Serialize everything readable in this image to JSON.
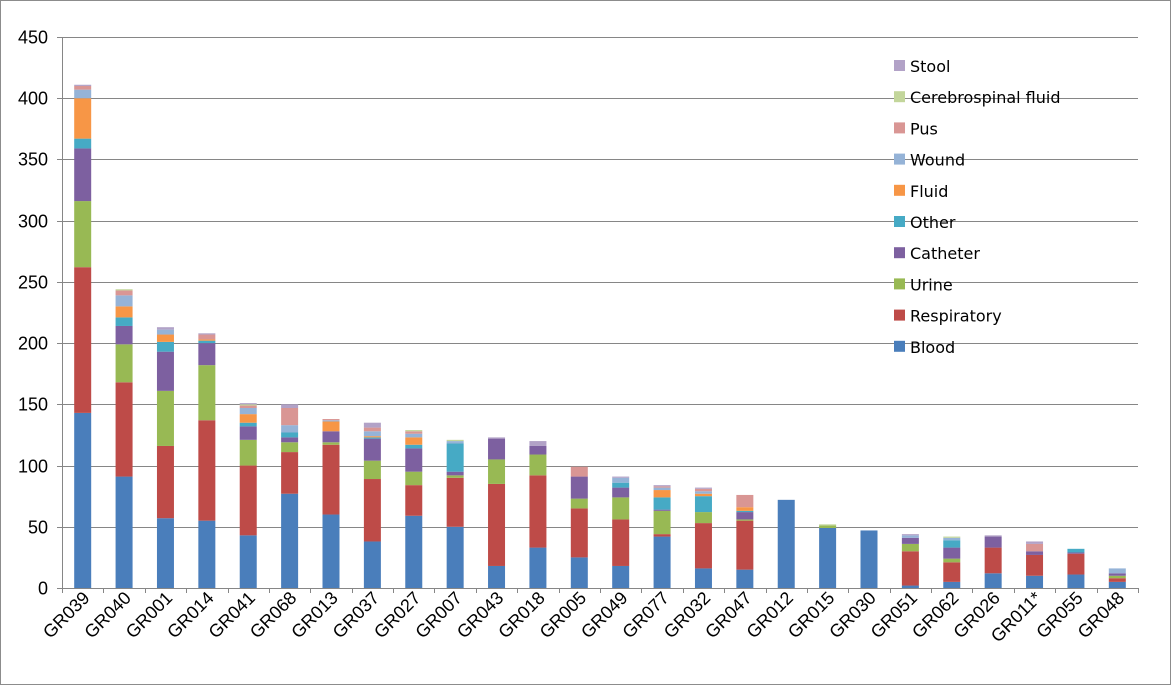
{
  "chart_data": {
    "type": "bar",
    "stacked": true,
    "title": "",
    "xlabel": "",
    "ylabel": "",
    "ylim": [
      0,
      450
    ],
    "yticks": [
      0,
      50,
      100,
      150,
      200,
      250,
      300,
      350,
      400,
      450
    ],
    "grid": true,
    "legend_position": "top-right",
    "categories": [
      "GR039",
      "GR040",
      "GR001",
      "GR014",
      "GR041",
      "GR068",
      "GR013",
      "GR037",
      "GR027",
      "GR007",
      "GR043",
      "GR018",
      "GR005",
      "GR049",
      "GR077",
      "GR032",
      "GR047",
      "GR012",
      "GR015",
      "GR030",
      "GR051",
      "GR062",
      "GR026",
      "GR011*",
      "GR055",
      "GR048"
    ],
    "series": [
      {
        "name": "Blood",
        "color": "#4a7ebb",
        "values": [
          143,
          91,
          57,
          55,
          43,
          77,
          60,
          38,
          59,
          50,
          18,
          33,
          25,
          18,
          42,
          16,
          15,
          72,
          49,
          47,
          2,
          5,
          12,
          10,
          11,
          5
        ]
      },
      {
        "name": "Respiratory",
        "color": "#be4b48",
        "values": [
          119,
          77,
          59,
          82,
          57,
          34,
          57,
          51,
          25,
          40,
          67,
          59,
          40,
          38,
          2,
          37,
          40,
          0,
          0,
          0,
          28,
          16,
          21,
          17,
          17,
          3
        ]
      },
      {
        "name": "Urine",
        "color": "#98b954",
        "values": [
          54,
          31,
          45,
          45,
          21,
          8,
          2,
          15,
          11,
          2,
          20,
          17,
          8,
          18,
          19,
          9,
          1,
          0,
          2,
          0,
          6,
          3,
          0,
          0,
          0,
          2
        ]
      },
      {
        "name": "Catheter",
        "color": "#7d60a0",
        "values": [
          43,
          15,
          32,
          18,
          11,
          4,
          9,
          18,
          19,
          3,
          17,
          7,
          18,
          8,
          1,
          0,
          6,
          0,
          0,
          0,
          5,
          9,
          9,
          3,
          1,
          2
        ]
      },
      {
        "name": "Other",
        "color": "#46aac5",
        "values": [
          8,
          7,
          8,
          2,
          3,
          4,
          0,
          1,
          3,
          23,
          0,
          0,
          0,
          4,
          10,
          13,
          1,
          0,
          0,
          0,
          0,
          6,
          0,
          0,
          3,
          0
        ]
      },
      {
        "name": "Fluid",
        "color": "#f79646",
        "values": [
          33,
          9,
          6,
          1,
          7,
          0,
          8,
          1,
          6,
          0,
          0,
          0,
          0,
          0,
          6,
          2,
          3,
          0,
          0,
          0,
          0,
          0,
          0,
          0,
          0,
          0
        ]
      },
      {
        "name": "Wound",
        "color": "#95b3d7",
        "values": [
          7,
          9,
          4,
          0,
          5,
          6,
          1,
          4,
          3,
          2,
          0,
          0,
          0,
          4,
          2,
          2,
          0,
          0,
          0,
          0,
          2,
          2,
          0,
          0,
          0,
          4
        ]
      },
      {
        "name": "Pus",
        "color": "#d99694",
        "values": [
          3,
          4,
          0,
          4,
          2,
          14,
          1,
          3,
          2,
          0,
          0,
          0,
          8,
          0,
          1,
          2,
          10,
          0,
          0,
          0,
          0,
          0,
          0,
          6,
          0,
          0
        ]
      },
      {
        "name": "Cerebrospinal fluid",
        "color": "#c3d69b",
        "values": [
          0,
          1,
          0,
          0,
          1,
          0,
          0,
          0,
          1,
          1,
          0,
          0,
          0,
          0,
          0,
          0,
          0,
          0,
          1,
          0,
          0,
          1,
          0,
          0,
          0,
          0
        ]
      },
      {
        "name": "Stool",
        "color": "#b2a2c7",
        "values": [
          1,
          0,
          2,
          1,
          1,
          3,
          0,
          4,
          0,
          0,
          1,
          4,
          0,
          1,
          1,
          1,
          0,
          0,
          0,
          0,
          1,
          0,
          1,
          2,
          0,
          0
        ]
      }
    ]
  }
}
